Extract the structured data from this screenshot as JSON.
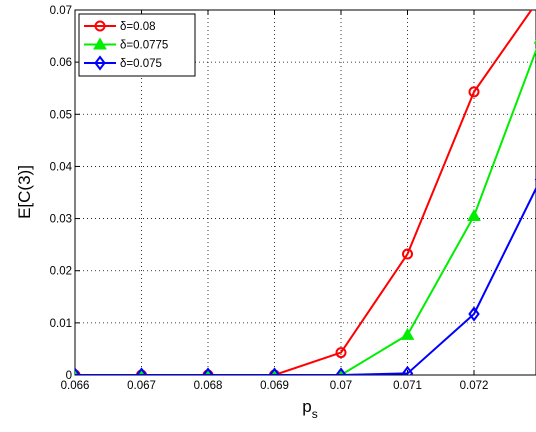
{
  "chart_data": {
    "type": "line",
    "title": "",
    "xlabel": "p",
    "xlabel_sub": "s",
    "ylabel": "E[C(3)]",
    "xlim": [
      0.066,
      0.073
    ],
    "ylim": [
      0,
      0.07
    ],
    "xticks": [
      "0.066",
      "0.067",
      "0.068",
      "0.069",
      "0.07",
      "0.071",
      "0.072"
    ],
    "yticks": [
      "0",
      "0.01",
      "0.02",
      "0.03",
      "0.04",
      "0.05",
      "0.06",
      "0.07"
    ],
    "grid": true,
    "legend_position": "top-left",
    "series": [
      {
        "name": "δ=0.08",
        "color": "#ff0000",
        "marker": "circle",
        "x": [
          0.066,
          0.067,
          0.068,
          0.069,
          0.07,
          0.071,
          0.072,
          0.073
        ],
        "y": [
          0,
          0,
          0,
          0,
          0.0043,
          0.0232,
          0.0543,
          0.0725
        ]
      },
      {
        "name": "δ=0.0775",
        "color": "#00ee00",
        "marker": "triangle",
        "x": [
          0.066,
          0.067,
          0.068,
          0.069,
          0.07,
          0.071,
          0.072,
          0.073
        ],
        "y": [
          0,
          0,
          0,
          0,
          0,
          0.0077,
          0.0305,
          0.0645
        ]
      },
      {
        "name": "δ=0.075",
        "color": "#0000ff",
        "marker": "diamond",
        "x": [
          0.066,
          0.067,
          0.068,
          0.069,
          0.07,
          0.071,
          0.072,
          0.073
        ],
        "y": [
          0,
          0,
          0,
          0,
          0,
          0.0003,
          0.0117,
          0.0375
        ]
      }
    ]
  }
}
